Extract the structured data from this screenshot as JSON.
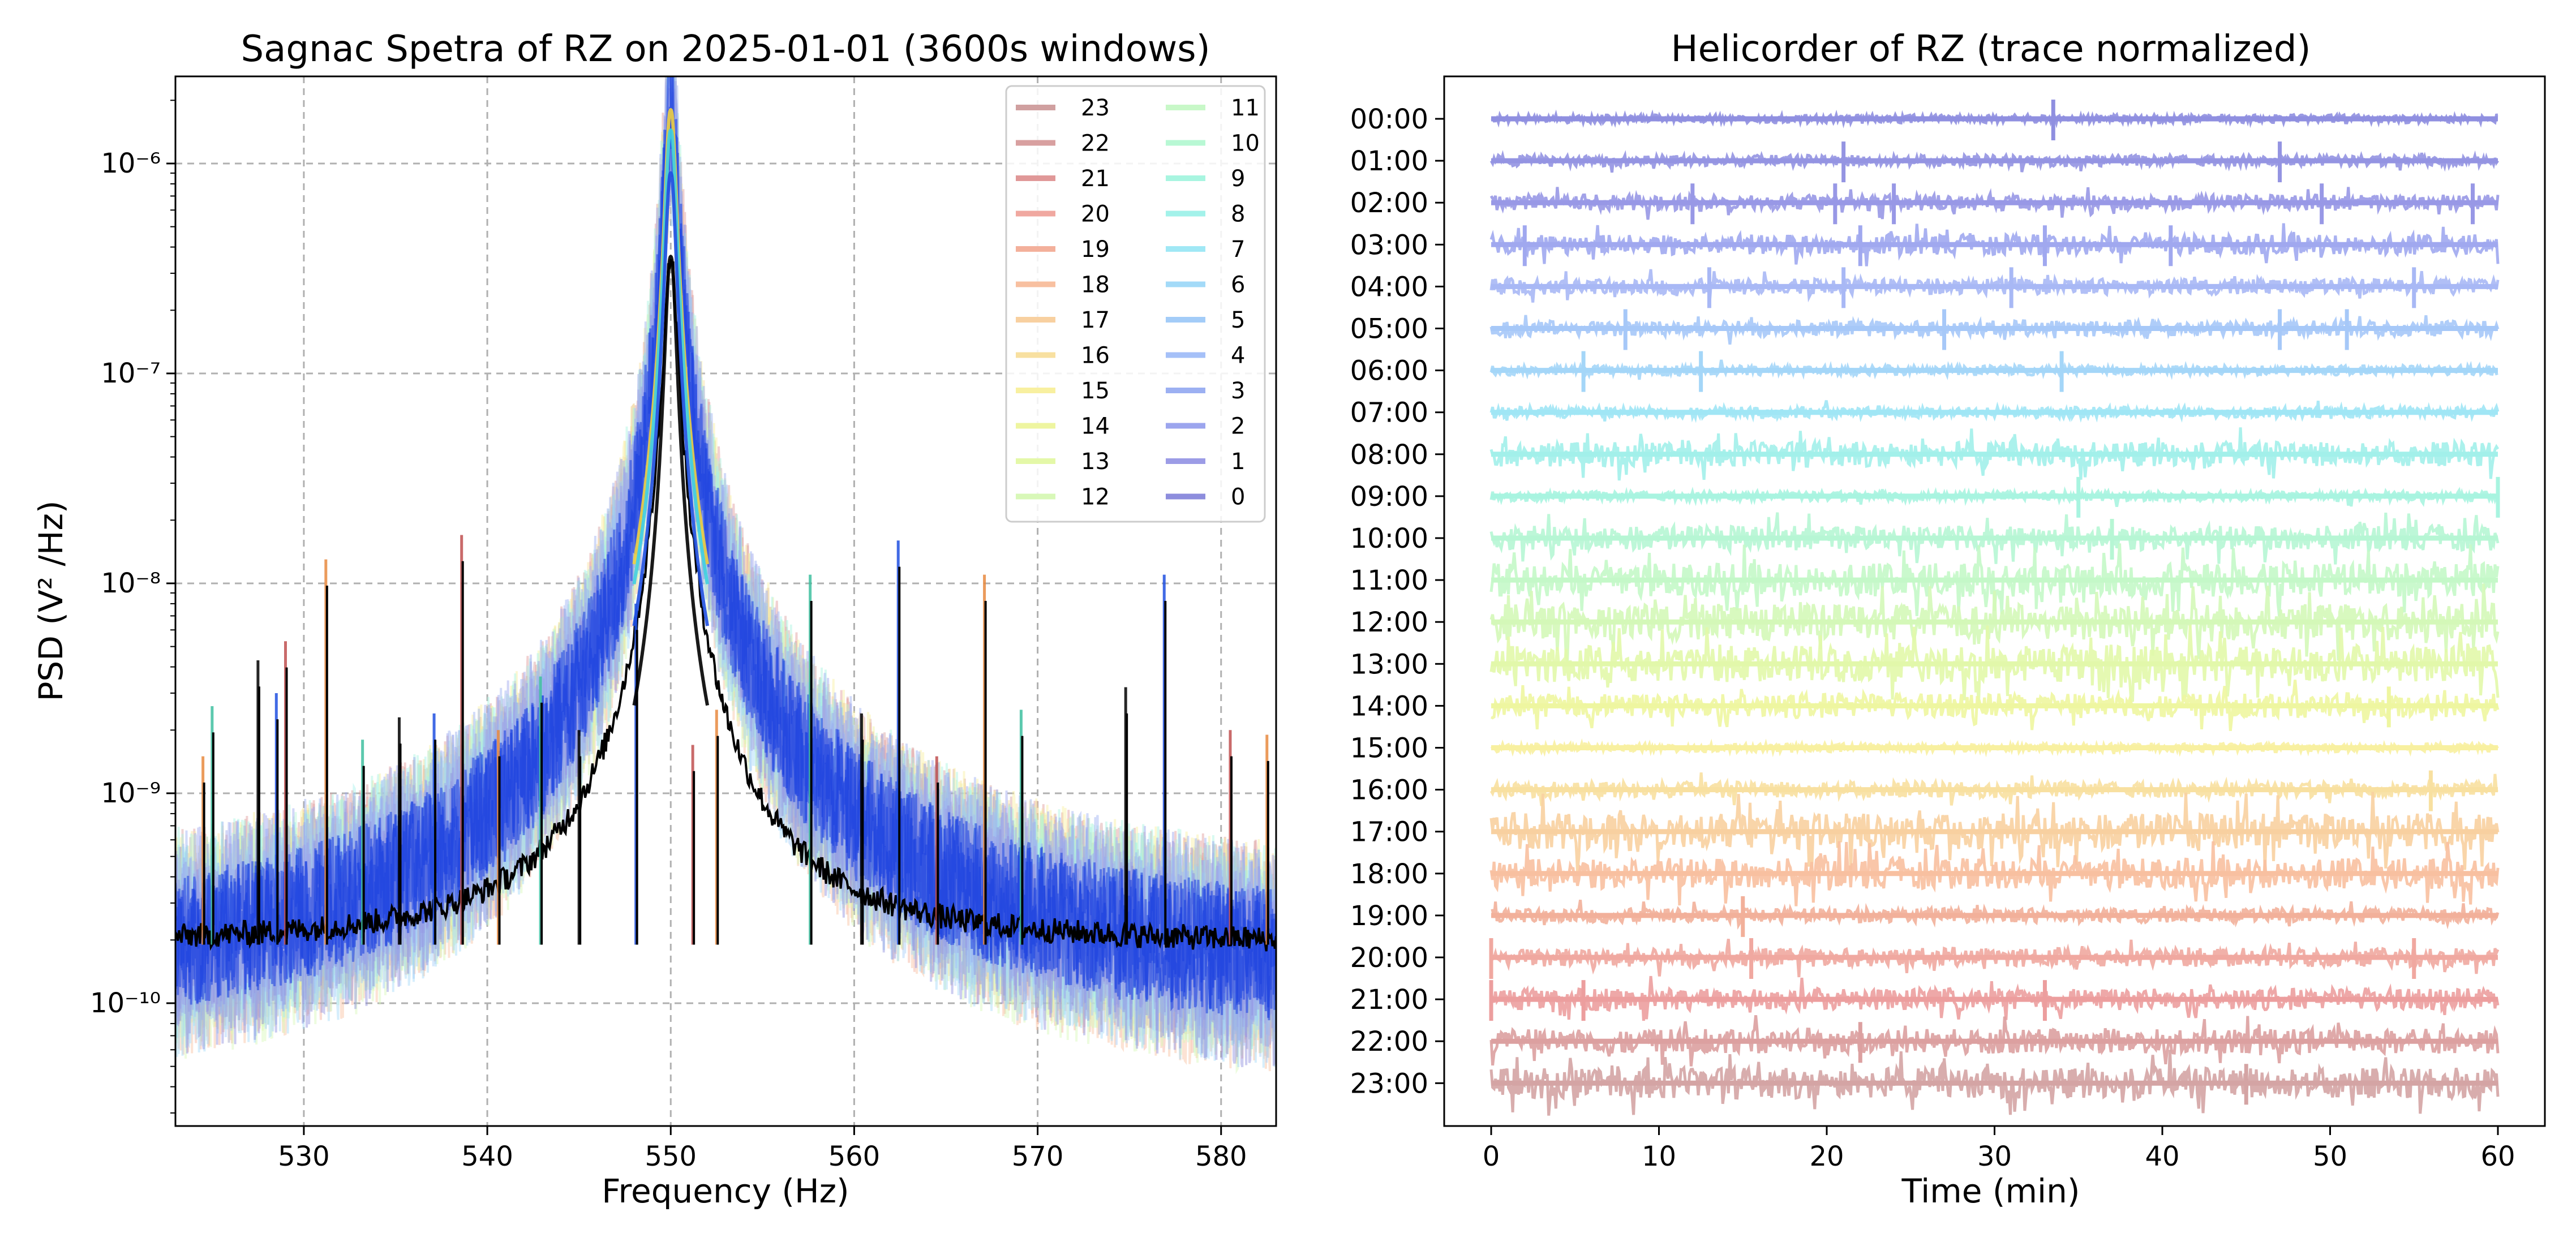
{
  "chart_data": [
    {
      "type": "line",
      "title": "Sagnac Spetra of RZ on 2025-01-01 (3600s windows)",
      "xlabel": "Frequency (Hz)",
      "ylabel": "PSD (V² /Hz)",
      "xlim": [
        523,
        583
      ],
      "ylim": [
        2.6e-11,
        2.6e-06
      ],
      "yscale": "log",
      "grid": true,
      "legend": "top-right",
      "xticks": [
        530,
        540,
        550,
        560,
        570,
        580
      ],
      "yticks": [
        {
          "value": 1e-10,
          "label": "10⁻¹⁰"
        },
        {
          "value": 1e-09,
          "label": "10⁻⁹"
        },
        {
          "value": 1e-08,
          "label": "10⁻⁸"
        },
        {
          "value": 1e-07,
          "label": "10⁻⁷"
        },
        {
          "value": 1e-06,
          "label": "10⁻⁶"
        }
      ],
      "legend_order": [
        "23",
        "22",
        "21",
        "20",
        "19",
        "18",
        "17",
        "16",
        "15",
        "14",
        "13",
        "12",
        "11",
        "10",
        "9",
        "8",
        "7",
        "6",
        "5",
        "4",
        "3",
        "2",
        "1",
        "0"
      ],
      "series_colors": {
        "0": "#8d8ddd",
        "1": "#9c9ce6",
        "2": "#9ca5ee",
        "3": "#9cb0f2",
        "4": "#a5c0f8",
        "5": "#a3ccf8",
        "6": "#a3daf8",
        "7": "#a0e8f5",
        "8": "#a3f2ea",
        "9": "#a8f5e0",
        "10": "#b8f8d4",
        "11": "#c8f8c8",
        "12": "#d8f8b8",
        "13": "#e4f8a8",
        "14": "#eef5a0",
        "15": "#f8f0a0",
        "16": "#f8e0a0",
        "17": "#f8d0a0",
        "18": "#f8c0a0",
        "19": "#f3b09b",
        "20": "#f0a8a0",
        "21": "#e09898",
        "22": "#d8a0a0",
        "23": "#d0a0a0"
      },
      "baseline_psd": 1.2e-10,
      "median_psd": 1.9e-10,
      "main_peak": {
        "frequency": 550,
        "psd": 1.8e-06
      },
      "spikes": [
        {
          "frequency": 524.5,
          "psd": 1.5e-09
        },
        {
          "frequency": 525.0,
          "psd": 2.6e-09
        },
        {
          "frequency": 527.5,
          "psd": 4.3e-09
        },
        {
          "frequency": 528.5,
          "psd": 3e-09
        },
        {
          "frequency": 529.0,
          "psd": 5.3e-09
        },
        {
          "frequency": 531.2,
          "psd": 1.3e-08
        },
        {
          "frequency": 533.2,
          "psd": 1.8e-09
        },
        {
          "frequency": 535.2,
          "psd": 2.3e-09
        },
        {
          "frequency": 537.1,
          "psd": 2.4e-09
        },
        {
          "frequency": 538.6,
          "psd": 1.7e-08
        },
        {
          "frequency": 540.6,
          "psd": 2e-09
        },
        {
          "frequency": 542.9,
          "psd": 3.6e-09
        },
        {
          "frequency": 545.0,
          "psd": 2e-09
        },
        {
          "frequency": 548.1,
          "psd": 8e-09
        },
        {
          "frequency": 551.2,
          "psd": 1.7e-09
        },
        {
          "frequency": 552.5,
          "psd": 2.5e-09
        },
        {
          "frequency": 557.6,
          "psd": 1.1e-08
        },
        {
          "frequency": 560.4,
          "psd": 2.4e-09
        },
        {
          "frequency": 562.4,
          "psd": 1.6e-08
        },
        {
          "frequency": 564.5,
          "psd": 1.5e-09
        },
        {
          "frequency": 567.1,
          "psd": 1.1e-08
        },
        {
          "frequency": 569.1,
          "psd": 2.5e-09
        },
        {
          "frequency": 574.8,
          "psd": 3.2e-09
        },
        {
          "frequency": 576.9,
          "psd": 1.1e-08
        },
        {
          "frequency": 580.5,
          "psd": 2e-09
        },
        {
          "frequency": 582.5,
          "psd": 1.9e-09
        }
      ]
    },
    {
      "type": "line",
      "title": "Helicorder of RZ (trace normalized)",
      "xlabel": "Time (min)",
      "ylabel": "",
      "xlim": [
        -2.8,
        62.8
      ],
      "xticks": [
        0,
        10,
        20,
        30,
        40,
        50,
        60
      ],
      "grid": false,
      "rows": [
        {
          "label": "00:00",
          "color": "#8f8fe0",
          "activity": 0.05,
          "burst_at": [
            33.5
          ]
        },
        {
          "label": "01:00",
          "color": "#9494e2",
          "activity": 0.15,
          "burst_at": [
            21,
            47
          ]
        },
        {
          "label": "02:00",
          "color": "#9898e6",
          "activity": 0.3,
          "burst_at": [
            12,
            20.5,
            24,
            49.5,
            58.5
          ]
        },
        {
          "label": "03:00",
          "color": "#a0a8ef",
          "activity": 0.45,
          "burst_at": [
            2,
            22,
            33,
            40.5
          ]
        },
        {
          "label": "04:00",
          "color": "#a8b8f5",
          "activity": 0.3,
          "burst_at": [
            13,
            21,
            31,
            55
          ]
        },
        {
          "label": "05:00",
          "color": "#a6c8f8",
          "activity": 0.3,
          "burst_at": [
            8,
            27,
            47,
            51
          ]
        },
        {
          "label": "06:00",
          "color": "#a4d6f8",
          "activity": 0.1,
          "burst_at": [
            5.5,
            12.5,
            34
          ]
        },
        {
          "label": "07:00",
          "color": "#a0e6f5",
          "activity": 0.15,
          "burst_at": []
        },
        {
          "label": "08:00",
          "color": "#a2f0ea",
          "activity": 0.6,
          "burst_at": []
        },
        {
          "label": "09:00",
          "color": "#a8f4e0",
          "activity": 0.1,
          "burst_at": [
            35,
            60
          ]
        },
        {
          "label": "10:00",
          "color": "#b6f6d4",
          "activity": 0.6,
          "burst_at": [
            37
          ]
        },
        {
          "label": "11:00",
          "color": "#c4f8c8",
          "activity": 0.9,
          "burst_at": []
        },
        {
          "label": "12:00",
          "color": "#d4f8b8",
          "activity": 1.0,
          "burst_at": []
        },
        {
          "label": "13:00",
          "color": "#e2f8aa",
          "activity": 1.0,
          "burst_at": []
        },
        {
          "label": "14:00",
          "color": "#eef6a0",
          "activity": 0.6,
          "burst_at": [
            53.5
          ]
        },
        {
          "label": "15:00",
          "color": "#f8f0a0",
          "activity": 0.05,
          "burst_at": []
        },
        {
          "label": "16:00",
          "color": "#f8e0a0",
          "activity": 0.3,
          "burst_at": [
            56
          ]
        },
        {
          "label": "17:00",
          "color": "#f8d0a0",
          "activity": 1.0,
          "burst_at": []
        },
        {
          "label": "18:00",
          "color": "#f8c0a0",
          "activity": 0.8,
          "burst_at": []
        },
        {
          "label": "19:00",
          "color": "#f2b09a",
          "activity": 0.25,
          "burst_at": [
            15
          ]
        },
        {
          "label": "20:00",
          "color": "#f0a8a0",
          "activity": 0.4,
          "burst_at": [
            0,
            15.5,
            55
          ]
        },
        {
          "label": "21:00",
          "color": "#ec9e9e",
          "activity": 0.5,
          "burst_at": [
            0,
            5.5,
            33
          ]
        },
        {
          "label": "22:00",
          "color": "#dca0a0",
          "activity": 0.6,
          "burst_at": [
            22
          ]
        },
        {
          "label": "23:00",
          "color": "#d4a4a4",
          "activity": 0.8,
          "burst_at": [
            45
          ]
        }
      ]
    }
  ]
}
